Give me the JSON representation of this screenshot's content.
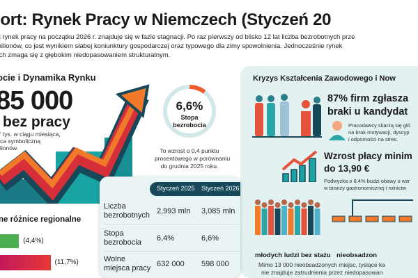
{
  "title": "port: Rynek Pracy w Niemczech (Styczeń 20",
  "intro": [
    "ki rynek pracy na początku 2026 r. znajduje się w fazie stagnacji. Po raz pierwszy od blisko 12 lat liczba bezrobotnych prze",
    "milionów, co jest wynikiem słabej koniunktury gospodarczej oraz typowego dla zimy spowolnienia. Jednocześnie rynek",
    "ych zmaga się z głębokim niedopasowaniem strukturalnym."
  ],
  "left": {
    "heading": "ocie i Dynamika Rynku",
    "big_number": "85 000",
    "big_label": "bez pracy",
    "desc": [
      "' tys. w ciągu miesiąca,",
      "ca symboliczną",
      "lionów."
    ],
    "donut": {
      "value": "6,6%",
      "label1": "Stopa",
      "label2": "bezrobocia",
      "fill_percent": 6.6,
      "desc": [
        "To wzrost o 0,4 punktu",
        "procentowego w porównaniu",
        "do grudnia 2025 roku."
      ]
    },
    "regional": {
      "heading": "ne różnice regionalne",
      "bars": [
        {
          "label": "(4,4%)",
          "value": 4.4,
          "color": "#4caf50"
        },
        {
          "label": "(11,7%)",
          "value": 11.7,
          "color": "#e53935"
        }
      ]
    }
  },
  "table": {
    "columns": [
      "Styczeń 2025",
      "Styczeń 2026"
    ],
    "rows": [
      {
        "label": [
          "Liczba",
          "bezrobotnych"
        ],
        "values": [
          "2,993 mln",
          "3,085 mln"
        ]
      },
      {
        "label": [
          "Stopa",
          "bezrobocia"
        ],
        "values": [
          "6,4%",
          "6,6%"
        ]
      },
      {
        "label": [
          "Wolne",
          "miejsca pracy"
        ],
        "values": [
          "632 000",
          "598 000"
        ]
      }
    ]
  },
  "right": {
    "heading": "Kryzys Kształcenia Zawodowego i Now",
    "stat1": [
      "87% firm zgłasza",
      "braki u kandydat"
    ],
    "stat1_desc": [
      "Pracodawcy skarżą się gló",
      "na brak motywacji, dyscyp",
      "i odporności na stres."
    ],
    "stat2": [
      "Wzrost płacy minim",
      "do 13,90 €"
    ],
    "stat2_desc": [
      "Podwyżka o 8,4% budzi obawy o wzr",
      "w branży gastronomicznej i rolnictw"
    ],
    "label_youth": "młodych ludzi bez stażu",
    "label_vacant": "nieobsadzon",
    "footer": [
      "Mimo 13 000 nieobsadzonych miejsc, tysiące ka",
      "nie znajduje zatrudnienia przez niedopasowan"
    ]
  },
  "colors": {
    "dark": "#17485a",
    "teal": "#1aa3a3",
    "orange": "#f07a2a",
    "red": "#d62f3a",
    "panel": "#e3f1f1"
  }
}
